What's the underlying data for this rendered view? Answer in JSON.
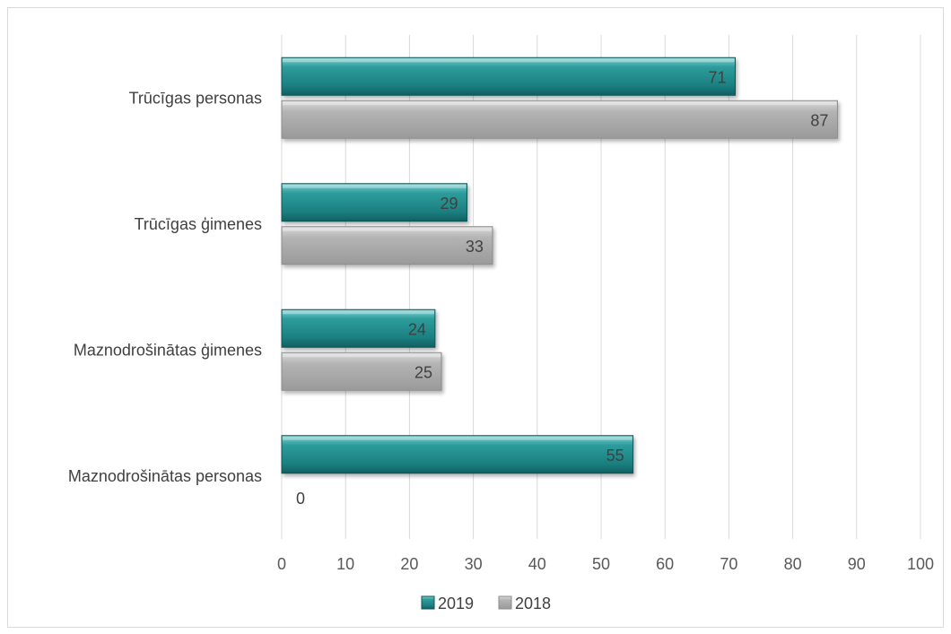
{
  "chart_data": {
    "type": "bar",
    "orientation": "horizontal",
    "categories": [
      "Trūcīgas personas",
      "Trūcīgas ģimenes",
      "Maznodrošinātas ģimenes",
      "Maznodrošinātas personas"
    ],
    "series": [
      {
        "name": "2019",
        "values": [
          71,
          29,
          24,
          55
        ],
        "color": "#1f8a8a"
      },
      {
        "name": "2018",
        "values": [
          87,
          33,
          25,
          0
        ],
        "color": "#a6a6a6"
      }
    ],
    "xlim": [
      0,
      100
    ],
    "xticks": [
      "0",
      "10",
      "20",
      "30",
      "40",
      "50",
      "60",
      "70",
      "80",
      "90",
      "100"
    ],
    "grid": "vertical",
    "legend": "bottom",
    "data_labels": true
  }
}
